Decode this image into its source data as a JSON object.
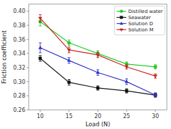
{
  "chart_data": {
    "type": "line",
    "x_label": "Load (N)",
    "y_label": "Friction coefficient",
    "x": [
      10,
      15,
      20,
      25,
      30
    ],
    "series": [
      {
        "name": "Distilled water",
        "color": "#22cc22",
        "marker": "circle",
        "values": [
          0.385,
          0.355,
          0.34,
          0.325,
          0.321
        ],
        "errors": [
          0.006,
          0.004,
          0.004,
          0.003,
          0.003
        ]
      },
      {
        "name": "Seawater",
        "color": "#111111",
        "marker": "square",
        "values": [
          0.333,
          0.299,
          0.291,
          0.287,
          0.281
        ],
        "errors": [
          0.004,
          0.004,
          0.003,
          0.003,
          0.003
        ]
      },
      {
        "name": "Solution D",
        "color": "#3333cc",
        "marker": "triangle-up",
        "values": [
          0.348,
          0.33,
          0.313,
          0.3,
          0.281
        ],
        "errors": [
          0.007,
          0.004,
          0.004,
          0.004,
          0.003
        ]
      },
      {
        "name": "Solution M",
        "color": "#cc2222",
        "marker": "triangle-down",
        "values": [
          0.39,
          0.345,
          0.338,
          0.321,
          0.308
        ],
        "errors": [
          0.005,
          0.004,
          0.004,
          0.003,
          0.003
        ]
      }
    ],
    "xlim": [
      8,
      32
    ],
    "ylim": [
      0.26,
      0.41
    ],
    "xticks": [
      10,
      15,
      20,
      25,
      30
    ],
    "yticks": [
      0.26,
      0.28,
      {
        "value": 0.3,
        "label": "0.30"
      },
      0.32,
      0.34,
      0.36,
      0.38,
      {
        "value": 0.4,
        "label": "0.40"
      }
    ],
    "grid": false,
    "legend": "upper right"
  }
}
